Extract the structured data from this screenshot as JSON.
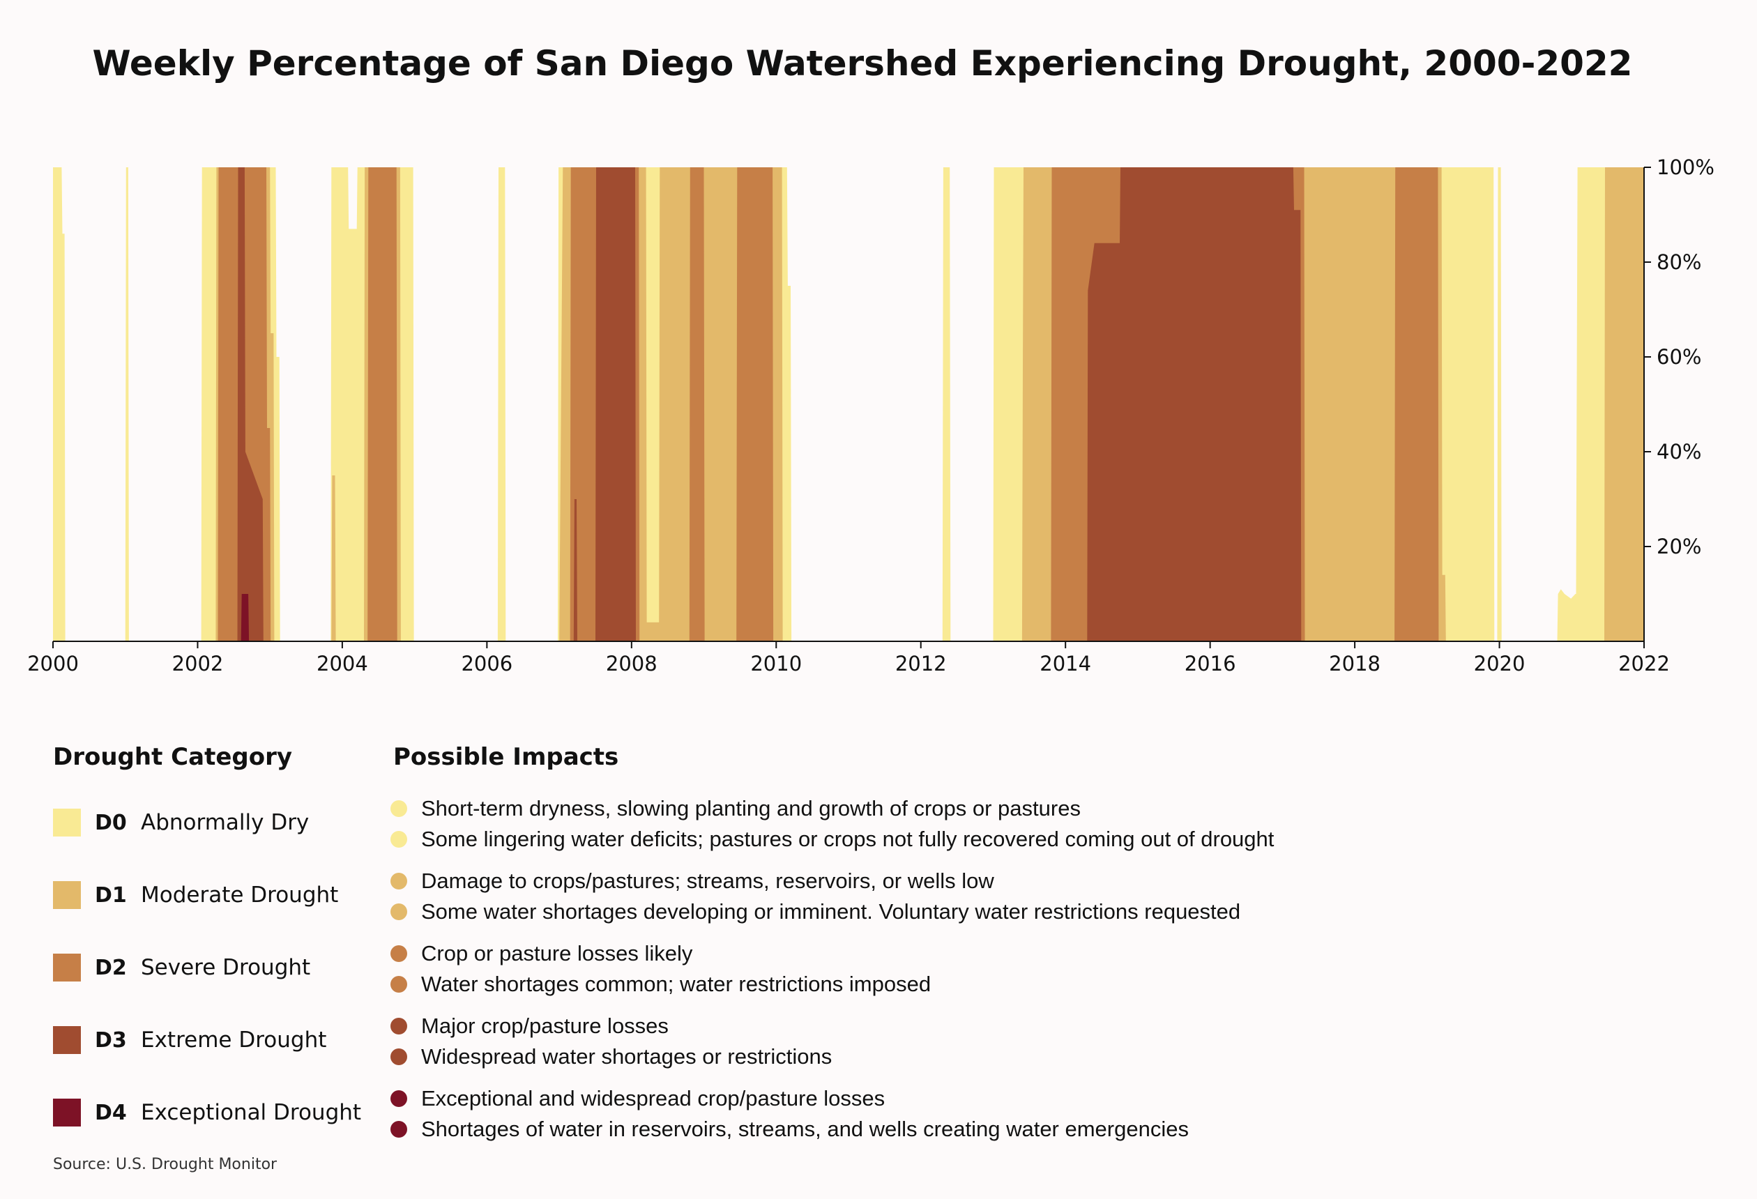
{
  "chart_data": {
    "type": "area",
    "title": "Weekly Percentage of San Diego Watershed Experiencing Drought, 2000-2022",
    "xlabel": "",
    "ylabel": "",
    "xlim": [
      2000,
      2022
    ],
    "ylim": [
      0,
      100
    ],
    "x_ticks": [
      "2000",
      "2002",
      "2004",
      "2006",
      "2008",
      "2010",
      "2012",
      "2014",
      "2016",
      "2018",
      "2020",
      "2022"
    ],
    "y_ticks": [
      "20%",
      "40%",
      "60%",
      "80%",
      "100%"
    ],
    "grid": false,
    "series": [
      {
        "name": "D0",
        "values": [
          [
            2000.0,
            100
          ],
          [
            2000.12,
            100
          ],
          [
            2000.13,
            86
          ],
          [
            2000.16,
            86
          ],
          [
            2000.17,
            0
          ],
          [
            2001.0,
            0
          ],
          [
            2001.01,
            100
          ],
          [
            2001.04,
            100
          ],
          [
            2001.05,
            0
          ],
          [
            2002.05,
            0
          ],
          [
            2002.06,
            100
          ],
          [
            2003.08,
            100
          ],
          [
            2003.09,
            60
          ],
          [
            2003.13,
            60
          ],
          [
            2003.14,
            0
          ],
          [
            2003.84,
            0
          ],
          [
            2003.85,
            100
          ],
          [
            2004.08,
            100
          ],
          [
            2004.09,
            87
          ],
          [
            2004.2,
            87
          ],
          [
            2004.21,
            100
          ],
          [
            2004.98,
            100
          ],
          [
            2004.99,
            0
          ],
          [
            2006.15,
            0
          ],
          [
            2006.16,
            100
          ],
          [
            2006.25,
            100
          ],
          [
            2006.26,
            0
          ],
          [
            2006.98,
            0
          ],
          [
            2006.99,
            100
          ],
          [
            2010.15,
            100
          ],
          [
            2010.16,
            75
          ],
          [
            2010.2,
            75
          ],
          [
            2010.21,
            0
          ],
          [
            2012.3,
            0
          ],
          [
            2012.31,
            100
          ],
          [
            2012.4,
            100
          ],
          [
            2012.41,
            0
          ],
          [
            2013.0,
            0
          ],
          [
            2013.01,
            100
          ],
          [
            2019.92,
            100
          ],
          [
            2019.93,
            0
          ],
          [
            2019.97,
            0
          ],
          [
            2019.98,
            100
          ],
          [
            2020.02,
            100
          ],
          [
            2020.03,
            0
          ],
          [
            2020.8,
            0
          ],
          [
            2020.81,
            10
          ],
          [
            2020.85,
            11
          ],
          [
            2020.9,
            10
          ],
          [
            2020.99,
            9
          ],
          [
            2021.05,
            10
          ],
          [
            2021.06,
            10
          ],
          [
            2021.08,
            100
          ],
          [
            2022.0,
            100
          ]
        ]
      },
      {
        "name": "D1",
        "values": [
          [
            2002.0,
            0
          ],
          [
            2002.25,
            0
          ],
          [
            2002.26,
            100
          ],
          [
            2003.0,
            100
          ],
          [
            2003.01,
            65
          ],
          [
            2003.05,
            65
          ],
          [
            2003.06,
            0
          ],
          [
            2003.85,
            0
          ],
          [
            2003.86,
            35
          ],
          [
            2003.9,
            35
          ],
          [
            2003.91,
            0
          ],
          [
            2004.3,
            0
          ],
          [
            2004.31,
            100
          ],
          [
            2004.8,
            100
          ],
          [
            2004.81,
            0
          ],
          [
            2007.0,
            0
          ],
          [
            2007.05,
            100
          ],
          [
            2008.2,
            100
          ],
          [
            2008.21,
            4
          ],
          [
            2008.38,
            4
          ],
          [
            2008.39,
            100
          ],
          [
            2010.08,
            100
          ],
          [
            2010.09,
            0
          ],
          [
            2013.0,
            0
          ],
          [
            2013.4,
            0
          ],
          [
            2013.41,
            58
          ],
          [
            2013.42,
            100
          ],
          [
            2019.2,
            100
          ],
          [
            2019.21,
            14
          ],
          [
            2019.25,
            14
          ],
          [
            2019.26,
            0
          ],
          [
            2021.0,
            0
          ],
          [
            2021.45,
            0
          ],
          [
            2021.46,
            100
          ],
          [
            2022.0,
            100
          ]
        ]
      },
      {
        "name": "D2",
        "values": [
          [
            2002.0,
            0
          ],
          [
            2002.28,
            0
          ],
          [
            2002.29,
            100
          ],
          [
            2002.95,
            100
          ],
          [
            2002.96,
            45
          ],
          [
            2003.0,
            45
          ],
          [
            2003.01,
            0
          ],
          [
            2004.35,
            0
          ],
          [
            2004.36,
            100
          ],
          [
            2004.75,
            100
          ],
          [
            2004.76,
            0
          ],
          [
            2007.15,
            0
          ],
          [
            2007.16,
            100
          ],
          [
            2008.1,
            100
          ],
          [
            2008.11,
            0
          ],
          [
            2008.8,
            0
          ],
          [
            2008.81,
            100
          ],
          [
            2009.0,
            100
          ],
          [
            2009.01,
            0
          ],
          [
            2009.45,
            0
          ],
          [
            2009.46,
            100
          ],
          [
            2009.95,
            100
          ],
          [
            2009.96,
            0
          ],
          [
            2013.8,
            0
          ],
          [
            2013.81,
            100
          ],
          [
            2017.3,
            100
          ],
          [
            2017.31,
            0
          ],
          [
            2018.55,
            0
          ],
          [
            2018.56,
            100
          ],
          [
            2019.15,
            100
          ],
          [
            2019.16,
            0
          ]
        ]
      },
      {
        "name": "D3",
        "values": [
          [
            2002.0,
            0
          ],
          [
            2002.55,
            0
          ],
          [
            2002.56,
            100
          ],
          [
            2002.65,
            100
          ],
          [
            2002.66,
            40
          ],
          [
            2002.9,
            30
          ],
          [
            2002.91,
            0
          ],
          [
            2007.2,
            0
          ],
          [
            2007.21,
            30
          ],
          [
            2007.24,
            30
          ],
          [
            2007.25,
            0
          ],
          [
            2007.5,
            0
          ],
          [
            2007.51,
            100
          ],
          [
            2008.05,
            100
          ],
          [
            2008.06,
            0
          ],
          [
            2014.3,
            0
          ],
          [
            2014.31,
            74
          ],
          [
            2014.4,
            84
          ],
          [
            2014.75,
            84
          ],
          [
            2014.76,
            100
          ],
          [
            2017.15,
            100
          ],
          [
            2017.16,
            91
          ],
          [
            2017.25,
            91
          ],
          [
            2017.26,
            0
          ]
        ]
      },
      {
        "name": "D4",
        "values": [
          [
            2002.0,
            0
          ],
          [
            2002.6,
            0
          ],
          [
            2002.61,
            10
          ],
          [
            2002.7,
            10
          ],
          [
            2002.71,
            0
          ]
        ]
      }
    ],
    "legend": {
      "title": "Drought Category",
      "entries": [
        {
          "code": "D0",
          "label": "Abnormally Dry",
          "color": "#f9ea94"
        },
        {
          "code": "D1",
          "label": "Moderate Drought",
          "color": "#e3b96a"
        },
        {
          "code": "D2",
          "label": "Severe Drought",
          "color": "#c67f47"
        },
        {
          "code": "D3",
          "label": "Extreme Drought",
          "color": "#a04c30"
        },
        {
          "code": "D4",
          "label": "Exceptional Drought",
          "color": "#7d1226"
        }
      ]
    },
    "impacts": {
      "title": "Possible Impacts",
      "groups": [
        [
          "Short-term dryness, slowing planting and growth of crops or pastures",
          "Some lingering water deficits; pastures or crops not fully recovered coming out of drought"
        ],
        [
          "Damage to crops/pastures; streams, reservoirs, or wells low",
          "Some water shortages developing or imminent. Voluntary water restrictions requested"
        ],
        [
          "Crop or pasture losses likely",
          "Water shortages common; water restrictions imposed"
        ],
        [
          "Major crop/pasture losses",
          "Widespread water shortages or restrictions"
        ],
        [
          "Exceptional and widespread crop/pasture losses",
          "Shortages of water in reservoirs, streams, and wells creating water emergencies"
        ]
      ]
    },
    "source": "Source: U.S. Drought Monitor"
  }
}
